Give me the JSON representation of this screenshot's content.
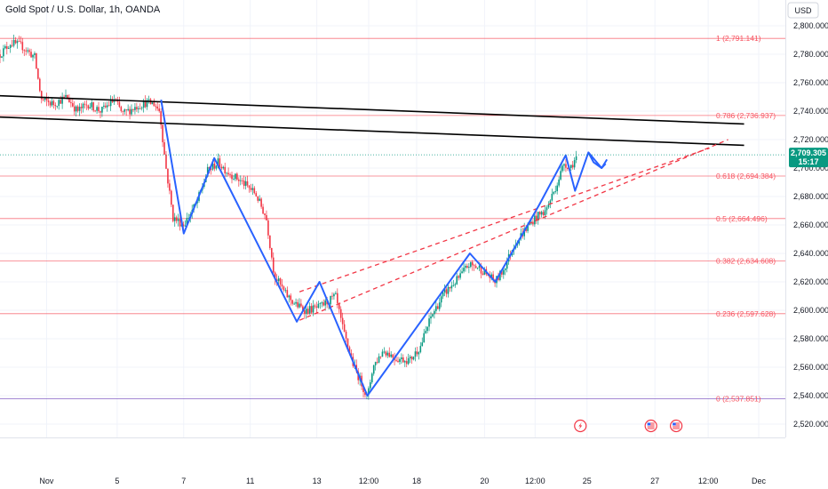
{
  "header": {
    "title": "Gold Spot / U.S. Dollar, 1h, OANDA",
    "currency_label": "USD"
  },
  "price_tag": {
    "price": "2,709.305",
    "countdown": "15:17",
    "color": "#089981"
  },
  "chart_data": {
    "type": "candlestick",
    "title": "Gold Spot / U.S. Dollar, 1h, OANDA",
    "ylim": [
      2515,
      2815
    ],
    "y_ticks": [
      2520,
      2540,
      2560,
      2580,
      2600,
      2620,
      2640,
      2660,
      2680,
      2700,
      2720,
      2740,
      2760,
      2780,
      2800
    ],
    "y_tick_labels": [
      "2,520.000",
      "2,540.000",
      "2,560.000",
      "2,580.000",
      "2,600.000",
      "2,620.000",
      "2,640.000",
      "2,660.000",
      "2,680.000",
      "2,700.000",
      "2,720.000",
      "2,740.000",
      "2,760.000",
      "2,780.000",
      "2,800.000"
    ],
    "x_ticks": [
      {
        "label": "Nov",
        "t": 35
      },
      {
        "label": "5",
        "t": 88
      },
      {
        "label": "7",
        "t": 138
      },
      {
        "label": "11",
        "t": 188
      },
      {
        "label": "13",
        "t": 238
      },
      {
        "label": "12:00",
        "t": 277
      },
      {
        "label": "18",
        "t": 313
      },
      {
        "label": "20",
        "t": 364
      },
      {
        "label": "12:00",
        "t": 402
      },
      {
        "label": "25",
        "t": 441
      },
      {
        "label": "27",
        "t": 492
      },
      {
        "label": "12:00",
        "t": 532
      },
      {
        "label": "Dec",
        "t": 570
      }
    ],
    "x_range": [
      0,
      590
    ],
    "last_price": 2709.305,
    "fib_levels": [
      {
        "label": "1 (2,791.141)",
        "value": 2791.141
      },
      {
        "label": "0.786 (2,736.937)",
        "value": 2736.937
      },
      {
        "label": "0.618 (2,694.384)",
        "value": 2694.384
      },
      {
        "label": "0.5 (2,664.496)",
        "value": 2664.496
      },
      {
        "label": "0.382 (2,634.608)",
        "value": 2634.608
      },
      {
        "label": "0.236 (2,597.628)",
        "value": 2597.628
      },
      {
        "label": "0 (2,537.851)",
        "value": 2537.851
      }
    ],
    "fib_color": "#f7525f",
    "bottom_level_color": "#7e57c2",
    "price_path": [
      [
        0,
        2780
      ],
      [
        8,
        2788
      ],
      [
        16,
        2786
      ],
      [
        26,
        2778
      ],
      [
        31,
        2748
      ],
      [
        40,
        2745
      ],
      [
        50,
        2750
      ],
      [
        58,
        2740
      ],
      [
        66,
        2745
      ],
      [
        76,
        2740
      ],
      [
        86,
        2748
      ],
      [
        92,
        2738
      ],
      [
        104,
        2744
      ],
      [
        110,
        2746
      ],
      [
        116,
        2745
      ],
      [
        120,
        2740
      ],
      [
        124,
        2705
      ],
      [
        130,
        2665
      ],
      [
        138,
        2660
      ],
      [
        148,
        2676
      ],
      [
        156,
        2698
      ],
      [
        164,
        2704
      ],
      [
        170,
        2698
      ],
      [
        182,
        2690
      ],
      [
        192,
        2682
      ],
      [
        200,
        2665
      ],
      [
        206,
        2625
      ],
      [
        214,
        2612
      ],
      [
        222,
        2604
      ],
      [
        230,
        2600
      ],
      [
        240,
        2602
      ],
      [
        252,
        2610
      ],
      [
        258,
        2585
      ],
      [
        266,
        2560
      ],
      [
        272,
        2548
      ],
      [
        276,
        2538
      ],
      [
        280,
        2560
      ],
      [
        288,
        2572
      ],
      [
        298,
        2566
      ],
      [
        308,
        2565
      ],
      [
        316,
        2575
      ],
      [
        324,
        2596
      ],
      [
        334,
        2612
      ],
      [
        344,
        2622
      ],
      [
        352,
        2632
      ],
      [
        360,
        2630
      ],
      [
        366,
        2625
      ],
      [
        372,
        2620
      ],
      [
        378,
        2628
      ],
      [
        386,
        2646
      ],
      [
        394,
        2656
      ],
      [
        402,
        2665
      ],
      [
        410,
        2670
      ],
      [
        418,
        2688
      ],
      [
        424,
        2704
      ],
      [
        428,
        2700
      ],
      [
        434,
        2709
      ]
    ],
    "zigzag_main": [
      [
        121,
        2748
      ],
      [
        138,
        2654
      ],
      [
        161,
        2707
      ],
      [
        223,
        2592
      ],
      [
        240,
        2620
      ],
      [
        276,
        2540
      ],
      [
        353,
        2640
      ],
      [
        372,
        2620
      ],
      [
        405,
        2674
      ],
      [
        425,
        2709
      ],
      [
        432,
        2684
      ],
      [
        442,
        2711
      ],
      [
        452,
        2700
      ],
      [
        455,
        2703
      ]
    ],
    "zigzag_forecast": [
      [
        442,
        2711
      ],
      [
        446,
        2704
      ],
      [
        452,
        2700
      ],
      [
        456,
        2706
      ]
    ],
    "resistance_lines": [
      {
        "from": [
          -5,
          2751
        ],
        "to": [
          559,
          2731
        ]
      },
      {
        "from": [
          -5,
          2736
        ],
        "to": [
          559,
          2716
        ]
      }
    ],
    "dashed_channel": [
      {
        "from": [
          225,
          2613
        ],
        "to": [
          533,
          2714
        ]
      },
      {
        "from": [
          225,
          2593
        ],
        "to": [
          547,
          2720
        ]
      }
    ],
    "dashed_color": "#f23645",
    "line_color": "#2962ff",
    "up_color": "#089981",
    "down_color": "#f23645",
    "event_icons": [
      {
        "name": "flash-event-icon",
        "t": 436,
        "color": "#f23645"
      },
      {
        "name": "us-flag-event-icon",
        "t": 489,
        "color": "#f23645"
      },
      {
        "name": "us-flag-event-icon",
        "t": 508,
        "color": "#f23645"
      }
    ]
  }
}
